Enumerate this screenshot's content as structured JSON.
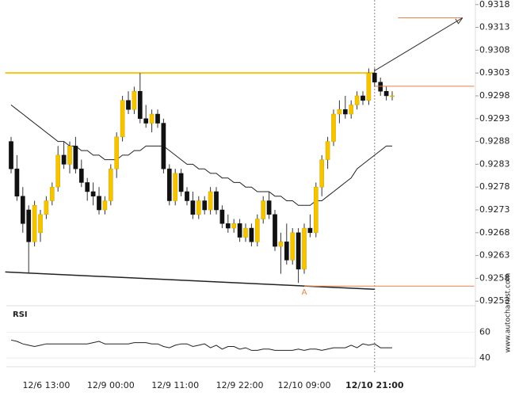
{
  "chart_data": {
    "type": "candlestick",
    "categories": [
      null,
      null,
      null,
      null,
      null,
      null,
      "12/6 13:00",
      null,
      null,
      null,
      null,
      null,
      null,
      null,
      null,
      null,
      null,
      "12/9 00:00",
      null,
      null,
      null,
      null,
      null,
      null,
      null,
      null,
      null,
      null,
      "12/9 11:00",
      null,
      null,
      null,
      null,
      null,
      null,
      null,
      null,
      null,
      null,
      "12/9 22:00",
      null,
      null,
      null,
      null,
      null,
      null,
      null,
      null,
      null,
      null,
      "12/10 09:00",
      null,
      null,
      null,
      null,
      null,
      null,
      null,
      null,
      null,
      null,
      null,
      "12/10 21:00",
      null,
      null,
      null
    ],
    "current_index": 62,
    "ohlc": [
      [
        0.9288,
        0.9289,
        0.9281,
        0.9282
      ],
      [
        0.9282,
        0.9285,
        0.9275,
        0.9276
      ],
      [
        0.9276,
        0.9278,
        0.9268,
        0.927
      ],
      [
        0.9273,
        0.9274,
        0.9259,
        0.9266
      ],
      [
        0.9266,
        0.9275,
        0.9265,
        0.9274
      ],
      [
        0.9268,
        0.9273,
        0.9266,
        0.9272
      ],
      [
        0.9272,
        0.9276,
        0.9271,
        0.9275
      ],
      [
        0.9275,
        0.9279,
        0.9274,
        0.9278
      ],
      [
        0.9278,
        0.9287,
        0.9277,
        0.9285
      ],
      [
        0.9285,
        0.9288,
        0.9282,
        0.9283
      ],
      [
        0.9283,
        0.9288,
        0.9281,
        0.9287
      ],
      [
        0.9287,
        0.9289,
        0.9281,
        0.9282
      ],
      [
        0.9282,
        0.9284,
        0.9278,
        0.9279
      ],
      [
        0.9279,
        0.928,
        0.9275,
        0.9277
      ],
      [
        0.9277,
        0.9279,
        0.9274,
        0.9276
      ],
      [
        0.9276,
        0.9278,
        0.9272,
        0.9273
      ],
      [
        0.9273,
        0.9276,
        0.9272,
        0.9275
      ],
      [
        0.9275,
        0.9283,
        0.9274,
        0.9282
      ],
      [
        0.9282,
        0.929,
        0.928,
        0.9289
      ],
      [
        0.9289,
        0.9298,
        0.9288,
        0.9297
      ],
      [
        0.9297,
        0.9299,
        0.9294,
        0.9295
      ],
      [
        0.9295,
        0.93,
        0.9294,
        0.9299
      ],
      [
        0.9299,
        0.9303,
        0.9292,
        0.9293
      ],
      [
        0.9293,
        0.9296,
        0.9291,
        0.9292
      ],
      [
        0.9292,
        0.9295,
        0.929,
        0.9294
      ],
      [
        0.9294,
        0.9295,
        0.9291,
        0.9292
      ],
      [
        0.9292,
        0.9293,
        0.9281,
        0.9282
      ],
      [
        0.9282,
        0.9283,
        0.9274,
        0.9275
      ],
      [
        0.9275,
        0.9282,
        0.9274,
        0.9281
      ],
      [
        0.9281,
        0.9282,
        0.9276,
        0.9277
      ],
      [
        0.9277,
        0.9278,
        0.9274,
        0.9275
      ],
      [
        0.9275,
        0.9277,
        0.9271,
        0.9272
      ],
      [
        0.9272,
        0.9276,
        0.9271,
        0.9275
      ],
      [
        0.9275,
        0.9276,
        0.9272,
        0.9273
      ],
      [
        0.9273,
        0.9278,
        0.9272,
        0.9277
      ],
      [
        0.9277,
        0.9278,
        0.9272,
        0.9273
      ],
      [
        0.9273,
        0.9274,
        0.9269,
        0.927
      ],
      [
        0.927,
        0.9272,
        0.9268,
        0.9269
      ],
      [
        0.9269,
        0.9271,
        0.9268,
        0.927
      ],
      [
        0.927,
        0.9271,
        0.9266,
        0.9267
      ],
      [
        0.9267,
        0.927,
        0.9266,
        0.9269
      ],
      [
        0.9269,
        0.927,
        0.9265,
        0.9266
      ],
      [
        0.9266,
        0.9272,
        0.9265,
        0.9271
      ],
      [
        0.9271,
        0.9276,
        0.927,
        0.9275
      ],
      [
        0.9275,
        0.9277,
        0.9271,
        0.9272
      ],
      [
        0.9272,
        0.9273,
        0.9264,
        0.9265
      ],
      [
        0.9265,
        0.9268,
        0.9259,
        0.9266
      ],
      [
        0.9266,
        0.927,
        0.9261,
        0.9262
      ],
      [
        0.9262,
        0.9269,
        0.9261,
        0.9268
      ],
      [
        0.9268,
        0.9269,
        0.9257,
        0.926
      ],
      [
        0.926,
        0.927,
        0.9259,
        0.9269
      ],
      [
        0.9269,
        0.9272,
        0.9267,
        0.9268
      ],
      [
        0.9268,
        0.9279,
        0.9267,
        0.9278
      ],
      [
        0.9278,
        0.9285,
        0.9276,
        0.9284
      ],
      [
        0.9284,
        0.9289,
        0.9282,
        0.9288
      ],
      [
        0.9288,
        0.9295,
        0.9287,
        0.9294
      ],
      [
        0.9294,
        0.9297,
        0.9292,
        0.9295
      ],
      [
        0.9295,
        0.9298,
        0.9293,
        0.9294
      ],
      [
        0.9294,
        0.9297,
        0.9293,
        0.9296
      ],
      [
        0.9296,
        0.9299,
        0.9295,
        0.9298
      ],
      [
        0.9298,
        0.9299,
        0.9296,
        0.9297
      ],
      [
        0.9297,
        0.9304,
        0.9296,
        0.9303
      ],
      [
        0.9303,
        0.9304,
        0.93,
        0.9301
      ],
      [
        0.9301,
        0.9302,
        0.9298,
        0.9299
      ],
      [
        0.9299,
        0.93,
        0.9297,
        0.9298
      ],
      [
        0.9298,
        0.9299,
        0.9297,
        0.9298
      ]
    ],
    "ma": [
      0.9296,
      0.9295,
      0.9294,
      0.9293,
      0.9292,
      0.9291,
      0.929,
      0.9289,
      0.9288,
      0.9288,
      0.9287,
      0.9287,
      0.9286,
      0.9286,
      0.9285,
      0.9285,
      0.9284,
      0.9284,
      0.9284,
      0.9285,
      0.9285,
      0.9286,
      0.9286,
      0.9287,
      0.9287,
      0.9287,
      0.9287,
      0.9286,
      0.9285,
      0.9284,
      0.9283,
      0.9283,
      0.9282,
      0.9282,
      0.9281,
      0.9281,
      0.928,
      0.928,
      0.9279,
      0.9279,
      0.9278,
      0.9278,
      0.9277,
      0.9277,
      0.9277,
      0.9276,
      0.9276,
      0.9275,
      0.9275,
      0.9274,
      0.9274,
      0.9274,
      0.9275,
      0.9275,
      0.9276,
      0.9277,
      0.9278,
      0.9279,
      0.928,
      0.9282,
      0.9283,
      0.9284,
      0.9285,
      0.9286,
      0.9287,
      0.9287
    ],
    "bull_color": "#f5c400",
    "bear_color": "#111111",
    "ylim": [
      0.9252,
      0.9319
    ],
    "yticks": [
      0.9253,
      0.9258,
      0.9263,
      0.9268,
      0.9273,
      0.9278,
      0.9283,
      0.9288,
      0.9293,
      0.9298,
      0.9303,
      0.9308,
      0.9313,
      0.9318
    ],
    "rsi_label": "RSI",
    "rsi": [
      54,
      53,
      51,
      50,
      49,
      50,
      51,
      51,
      51,
      51,
      51,
      51,
      51,
      51,
      52,
      53,
      51,
      51,
      51,
      51,
      51,
      52,
      52,
      52,
      51,
      51,
      49,
      48,
      50,
      51,
      51,
      49,
      50,
      51,
      48,
      50,
      47,
      49,
      49,
      47,
      48,
      46,
      46,
      47,
      47,
      46,
      46,
      46,
      46,
      47,
      46,
      47,
      47,
      46,
      47,
      48,
      48,
      48,
      50,
      48,
      51,
      50,
      51,
      48,
      48,
      48
    ],
    "rsi_ylim": [
      34,
      75
    ],
    "rsi_yticks": [
      40,
      60
    ],
    "resistance": {
      "price": 0.9303,
      "x_from": -1,
      "x_to": 62,
      "color": "#f5c518"
    },
    "support": {
      "from": [
        -1,
        0.92594
      ],
      "to": [
        62,
        0.92556
      ]
    },
    "levels": [
      {
        "price": 0.93151,
        "x_from": 66,
        "x_to": 77
      },
      {
        "price": 0.93001,
        "x_from": 62,
        "x_to": 79
      },
      {
        "price": 0.92563,
        "x_from": 50,
        "x_to": 79
      }
    ],
    "level_color": "#e8804a",
    "arrow": {
      "from": [
        62,
        0.93035
      ],
      "to": [
        77,
        0.93151
      ]
    },
    "point_label": {
      "text": "A",
      "x": 50,
      "price": 0.92563
    },
    "watermark": "www.autochartist.com"
  }
}
